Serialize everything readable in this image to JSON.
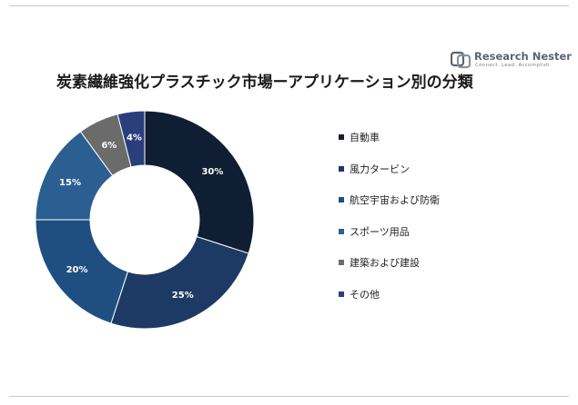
{
  "logo": {
    "name": "Research Nester",
    "tagline": "Connect. Lead. Accomplish"
  },
  "chart_data": {
    "type": "pie",
    "title": "炭素繊維強化プラスチック市場ーアプリケーション別の分類",
    "donut": true,
    "legend_position": "right",
    "categories": [
      "自動車",
      "風力タービン",
      "航空宇宙および防衛",
      "スポーツ用品",
      "建築および建設",
      "その他"
    ],
    "values": [
      30,
      25,
      20,
      15,
      6,
      4
    ],
    "value_labels": [
      "30%",
      "25%",
      "20%",
      "15%",
      "6%",
      "4%"
    ],
    "colors": [
      "#0f1e32",
      "#1c3a63",
      "#1e4f80",
      "#2b5f92",
      "#6b6b6b",
      "#2a3e7c"
    ],
    "label_colors": [
      "#ffffff",
      "#ffffff",
      "#ffffff",
      "#ffffff",
      "#ffffff",
      "#ffffff"
    ]
  }
}
